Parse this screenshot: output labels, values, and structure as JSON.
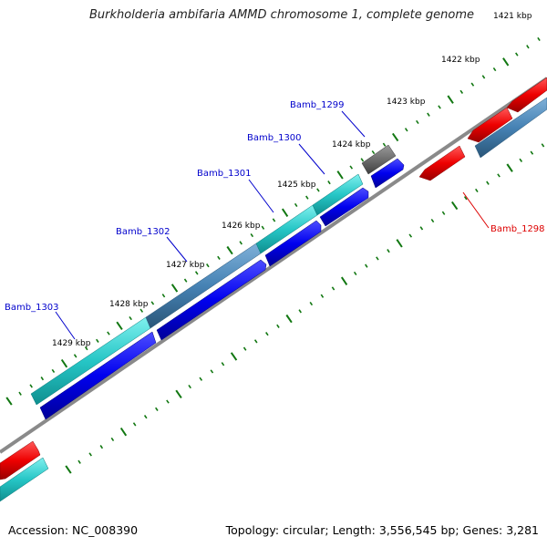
{
  "title": "Burkholderia ambifaria AMMD chromosome 1, complete genome",
  "footer": {
    "accession": "Accession: NC_008390",
    "summary": "Topology: circular; Length: 3,556,545 bp; Genes: 3,281"
  },
  "tick_labels": [
    "1421 kbp",
    "1422 kbp",
    "1423 kbp",
    "1424 kbp",
    "1425 kbp",
    "1426 kbp",
    "1427 kbp",
    "1428 kbp",
    "1429 kbp"
  ],
  "gene_labels": [
    {
      "text": "Bamb_1299",
      "color": "#0000cc"
    },
    {
      "text": "Bamb_1300",
      "color": "#0000cc"
    },
    {
      "text": "Bamb_1301",
      "color": "#0000cc"
    },
    {
      "text": "Bamb_1302",
      "color": "#0000cc"
    },
    {
      "text": "Bamb_1303",
      "color": "#0000cc"
    },
    {
      "text": "Bamb_1298",
      "color": "#dd0000"
    }
  ],
  "colors": {
    "cds_forward": "#0000ee",
    "orf_teal": "#26c6c6",
    "orf_steel": "#4682b4",
    "cds_reverse": "#ee0000",
    "pseudo_gray": "#6d6d6d",
    "backbone": "#888888",
    "tick_marks": "#117711"
  }
}
